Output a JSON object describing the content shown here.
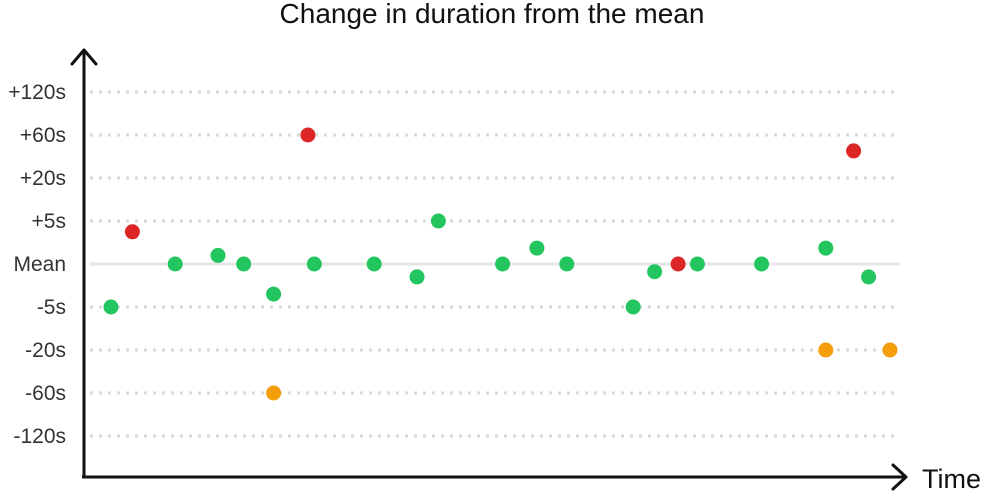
{
  "chart_data": {
    "type": "scatter",
    "title": "Change in duration from the mean",
    "xlabel": "Time",
    "ylabel": "",
    "y_ticks": [
      "+120s",
      "+60s",
      "+20s",
      "+5s",
      "Mean",
      "-5s",
      "-20s",
      "-60s",
      "-120s"
    ],
    "y_scale": "categorical-level",
    "grid": "horizontal-dotted",
    "colors": {
      "green": "#22c55e",
      "red": "#dc2626",
      "orange": "#f59e0b",
      "grid": "#d9d9d9",
      "axis": "#111111"
    },
    "points": [
      {
        "t": 1,
        "level": -1,
        "color": "green"
      },
      {
        "t": 2,
        "level": 0.75,
        "color": "red"
      },
      {
        "t": 4,
        "level": 0,
        "color": "green"
      },
      {
        "t": 6,
        "level": 0.2,
        "color": "green"
      },
      {
        "t": 7.2,
        "level": 0,
        "color": "green"
      },
      {
        "t": 8.6,
        "level": -0.7,
        "color": "green"
      },
      {
        "t": 8.6,
        "level": -3,
        "color": "orange"
      },
      {
        "t": 10.2,
        "level": 3,
        "color": "red"
      },
      {
        "t": 10.5,
        "level": 0,
        "color": "green"
      },
      {
        "t": 13.3,
        "level": 0,
        "color": "green"
      },
      {
        "t": 15.3,
        "level": -0.3,
        "color": "green"
      },
      {
        "t": 16.3,
        "level": 1,
        "color": "green"
      },
      {
        "t": 19.3,
        "level": 0,
        "color": "green"
      },
      {
        "t": 20.9,
        "level": 0.37,
        "color": "green"
      },
      {
        "t": 22.3,
        "level": 0,
        "color": "green"
      },
      {
        "t": 25.4,
        "level": -1,
        "color": "green"
      },
      {
        "t": 26.4,
        "level": -0.18,
        "color": "green"
      },
      {
        "t": 27.5,
        "level": 0,
        "color": "red"
      },
      {
        "t": 28.4,
        "level": 0,
        "color": "green"
      },
      {
        "t": 31.4,
        "level": 0,
        "color": "green"
      },
      {
        "t": 34.4,
        "level": 0.37,
        "color": "green"
      },
      {
        "t": 34.4,
        "level": -2,
        "color": "orange"
      },
      {
        "t": 35.7,
        "level": 2.63,
        "color": "red"
      },
      {
        "t": 36.4,
        "level": -0.3,
        "color": "green"
      },
      {
        "t": 37.4,
        "level": -2,
        "color": "orange"
      }
    ]
  }
}
